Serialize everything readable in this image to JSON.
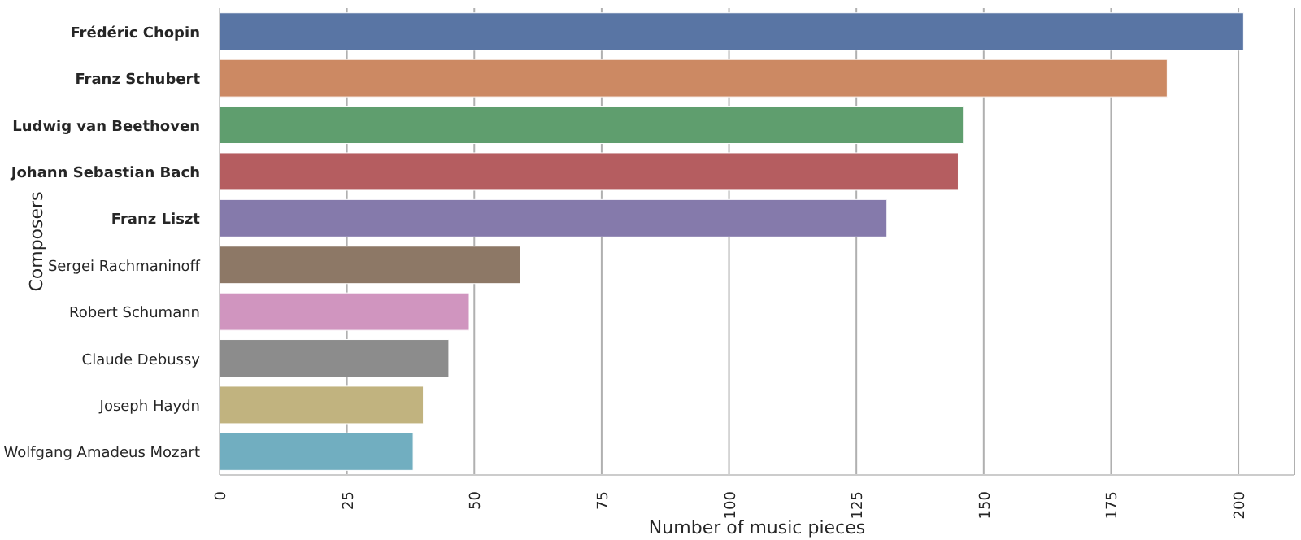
{
  "chart_data": {
    "type": "bar",
    "orientation": "horizontal",
    "xlabel": "Number of music pieces",
    "ylabel": "Composers",
    "categories": [
      "Frédéric Chopin",
      "Franz Schubert",
      "Ludwig van Beethoven",
      "Johann Sebastian Bach",
      "Franz Liszt",
      "Sergei Rachmaninoff",
      "Robert Schumann",
      "Claude Debussy",
      "Joseph Haydn",
      "Wolfgang Amadeus Mozart"
    ],
    "values": [
      201,
      186,
      146,
      145,
      131,
      59,
      49,
      45,
      40,
      38
    ],
    "colors": [
      "#5975a4",
      "#cc8963",
      "#5f9e6e",
      "#b55d60",
      "#857aab",
      "#8d7866",
      "#d095bf",
      "#8c8c8c",
      "#c1b37f",
      "#71aec0"
    ],
    "xlim": [
      0,
      211
    ],
    "xticks": [
      0,
      25,
      50,
      75,
      100,
      125,
      150,
      175,
      200
    ],
    "grid": "x",
    "legend": false
  }
}
